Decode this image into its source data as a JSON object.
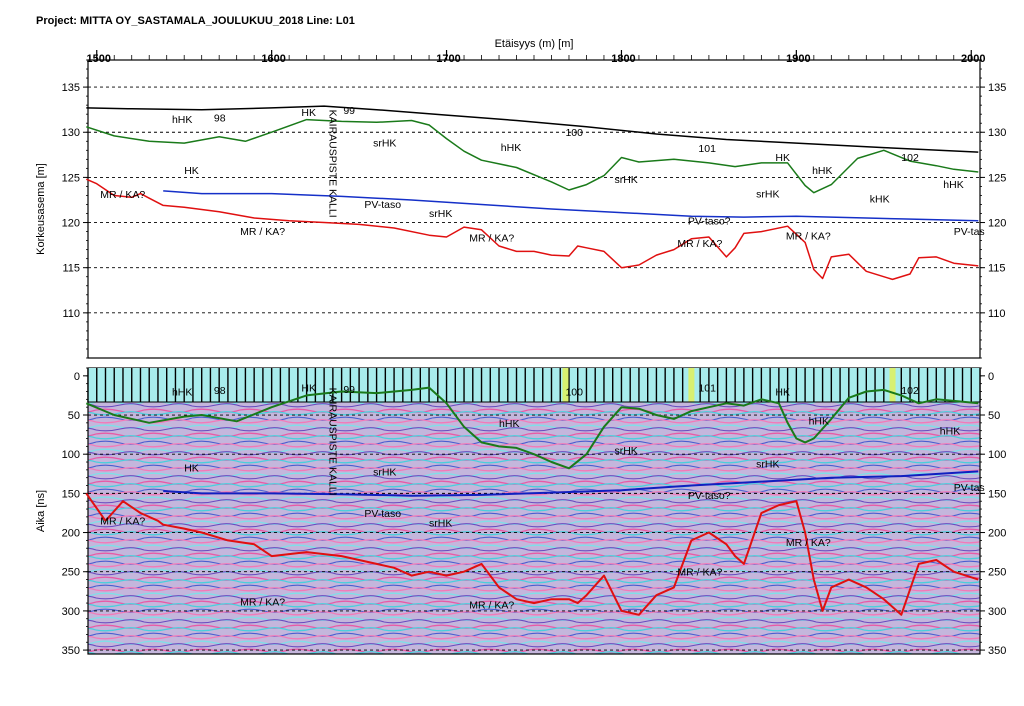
{
  "header": {
    "project": "Project: MITTA OY_SASTAMALA_JOULUKUU_2018  Line: L01"
  },
  "chart_data": [
    {
      "type": "line",
      "xlabel": "Etäisyys (m) [m]",
      "ylabel": "Korkeusasema [m]",
      "xlim": [
        1495,
        2005
      ],
      "ylim": [
        105,
        138
      ],
      "x_ticks": [
        1500,
        1600,
        1700,
        1800,
        1900,
        2000
      ],
      "y_ticks": [
        110,
        115,
        120,
        125,
        130,
        135
      ],
      "grid": true,
      "series": [
        {
          "color": "#000000",
          "x": [
            1494,
            1520,
            1560,
            1600,
            1630,
            1660,
            1700,
            1740,
            1780,
            1820,
            1860,
            1900,
            1950,
            2004
          ],
          "y": [
            132.7,
            132.6,
            132.5,
            132.7,
            132.9,
            132.5,
            131.9,
            131.3,
            130.6,
            129.8,
            129.2,
            128.8,
            128.3,
            127.8
          ]
        },
        {
          "color": "#1a7a1a",
          "x": [
            1494,
            1510,
            1530,
            1550,
            1570,
            1585,
            1600,
            1620,
            1640,
            1660,
            1680,
            1690,
            1700,
            1710,
            1720,
            1740,
            1760,
            1770,
            1780,
            1790,
            1800,
            1810,
            1830,
            1850,
            1865,
            1880,
            1895,
            1905,
            1910,
            1920,
            1935,
            1950,
            1965,
            1980,
            1990,
            2004
          ],
          "y": [
            130.6,
            129.6,
            129.0,
            128.8,
            129.5,
            129.0,
            130.0,
            131.4,
            131.2,
            131.1,
            131.3,
            130.8,
            129.3,
            127.9,
            126.9,
            126.1,
            124.5,
            123.6,
            124.2,
            125.2,
            127.2,
            126.7,
            127.0,
            126.6,
            126.2,
            126.6,
            126.6,
            124.1,
            123.3,
            124.2,
            127.1,
            128.0,
            126.8,
            126.3,
            125.9,
            125.6
          ]
        },
        {
          "color": "#1530c8",
          "x": [
            1538,
            1560,
            1600,
            1640,
            1680,
            1720,
            1760,
            1800,
            1840,
            1870,
            1900,
            1940,
            1960,
            2004
          ],
          "y": [
            123.5,
            123.2,
            123.2,
            122.9,
            122.5,
            122.0,
            121.5,
            121.1,
            120.7,
            120.6,
            120.7,
            120.5,
            120.4,
            120.2
          ]
        },
        {
          "color": "#e01010",
          "x": [
            1494,
            1500,
            1510,
            1520,
            1525,
            1530,
            1538,
            1550,
            1570,
            1590,
            1610,
            1630,
            1650,
            1670,
            1690,
            1700,
            1710,
            1720,
            1730,
            1740,
            1750,
            1760,
            1770,
            1775,
            1780,
            1790,
            1800,
            1810,
            1820,
            1830,
            1840,
            1850,
            1860,
            1865,
            1870,
            1880,
            1895,
            1905,
            1910,
            1915,
            1920,
            1930,
            1940,
            1955,
            1965,
            1970,
            1980,
            1990,
            2004
          ],
          "y": [
            124.8,
            124.3,
            123.0,
            122.8,
            123.2,
            122.7,
            121.9,
            121.7,
            121.2,
            120.5,
            120.2,
            120.0,
            119.8,
            119.4,
            118.6,
            118.4,
            119.5,
            119.2,
            117.4,
            116.8,
            116.8,
            116.4,
            116.3,
            117.4,
            117.2,
            116.8,
            115.0,
            115.3,
            116.4,
            117.0,
            118.2,
            118.4,
            116.2,
            117.2,
            118.8,
            119.0,
            119.6,
            117.8,
            114.8,
            113.8,
            116.2,
            116.5,
            114.6,
            113.7,
            114.3,
            116.1,
            116.2,
            115.5,
            115.2
          ]
        }
      ],
      "annotations": [
        {
          "text": "hHK",
          "x": 1543,
          "y": 131.0
        },
        {
          "text": "98",
          "x": 1567,
          "y": 131.2
        },
        {
          "text": "HK",
          "x": 1617,
          "y": 131.8
        },
        {
          "text": "99",
          "x": 1641,
          "y": 132.0
        },
        {
          "text": "srHK",
          "x": 1658,
          "y": 128.4
        },
        {
          "text": "hHK",
          "x": 1731,
          "y": 127.9
        },
        {
          "text": "100",
          "x": 1768,
          "y": 129.6
        },
        {
          "text": "101",
          "x": 1844,
          "y": 127.8
        },
        {
          "text": "HK",
          "x": 1888,
          "y": 126.8
        },
        {
          "text": "hHK",
          "x": 1909,
          "y": 125.4
        },
        {
          "text": "102",
          "x": 1960,
          "y": 126.8
        },
        {
          "text": "hHK",
          "x": 1984,
          "y": 123.8
        },
        {
          "text": "HK",
          "x": 1550,
          "y": 125.4
        },
        {
          "text": "srHK",
          "x": 1796,
          "y": 124.4
        },
        {
          "text": "srHK",
          "x": 1877,
          "y": 122.8
        },
        {
          "text": "kHK",
          "x": 1942,
          "y": 122.2
        },
        {
          "text": "MR / KA?",
          "x": 1502,
          "y": 122.7
        },
        {
          "text": "PV-taso",
          "x": 1653,
          "y": 121.6
        },
        {
          "text": "srHK",
          "x": 1690,
          "y": 120.6
        },
        {
          "text": "PV-taso?",
          "x": 1838,
          "y": 119.8
        },
        {
          "text": "PV-tas",
          "x": 1990,
          "y": 118.6
        },
        {
          "text": "MR / KA?",
          "x": 1582,
          "y": 118.6
        },
        {
          "text": "MR / KA?",
          "x": 1713,
          "y": 117.9
        },
        {
          "text": "MR / KA?",
          "x": 1832,
          "y": 117.3
        },
        {
          "text": "MR / KA?",
          "x": 1894,
          "y": 118.1
        }
      ],
      "vertical_label": {
        "text": "KAIRAUSPISTE KALLI",
        "x": 1633
      }
    },
    {
      "type": "heatmap",
      "ylabel": "Aika [ns]",
      "xlim": [
        1495,
        2005
      ],
      "ylim": [
        355,
        -10
      ],
      "y_ticks": [
        0,
        50,
        100,
        150,
        200,
        250,
        300,
        350
      ],
      "grid": true,
      "series": [
        {
          "color": "#1a7a1a",
          "x": [
            1494,
            1510,
            1530,
            1550,
            1560,
            1580,
            1600,
            1620,
            1640,
            1660,
            1680,
            1690,
            1700,
            1710,
            1720,
            1730,
            1740,
            1750,
            1760,
            1770,
            1780,
            1790,
            1800,
            1810,
            1820,
            1830,
            1840,
            1850,
            1860,
            1870,
            1880,
            1890,
            1895,
            1900,
            1905,
            1910,
            1920,
            1930,
            1940,
            1950,
            1960,
            1970,
            1980,
            1990,
            2004
          ],
          "y": [
            35,
            50,
            60,
            52,
            50,
            58,
            40,
            25,
            20,
            22,
            18,
            15,
            35,
            65,
            85,
            90,
            92,
            100,
            110,
            118,
            100,
            65,
            40,
            42,
            50,
            55,
            45,
            40,
            35,
            38,
            30,
            35,
            60,
            80,
            85,
            80,
            55,
            28,
            20,
            18,
            25,
            35,
            30,
            32,
            35
          ]
        },
        {
          "color": "#1020c0",
          "x": [
            1538,
            1560,
            1600,
            1640,
            1680,
            1720,
            1760,
            1800,
            1840,
            1880,
            1920,
            1960,
            2004
          ],
          "y": [
            147,
            150,
            150,
            151,
            153,
            152,
            149,
            146,
            140,
            135,
            130,
            128,
            122
          ]
        },
        {
          "color": "#e01010",
          "x": [
            1494,
            1505,
            1515,
            1525,
            1535,
            1538,
            1550,
            1560,
            1575,
            1590,
            1600,
            1620,
            1640,
            1660,
            1670,
            1680,
            1690,
            1700,
            1710,
            1720,
            1730,
            1740,
            1750,
            1760,
            1770,
            1775,
            1780,
            1790,
            1800,
            1810,
            1820,
            1830,
            1840,
            1850,
            1860,
            1865,
            1870,
            1880,
            1890,
            1900,
            1905,
            1910,
            1915,
            1920,
            1930,
            1940,
            1950,
            1960,
            1970,
            1980,
            1990,
            2004
          ],
          "y": [
            150,
            185,
            160,
            175,
            185,
            190,
            195,
            200,
            210,
            215,
            230,
            225,
            230,
            240,
            245,
            255,
            250,
            255,
            250,
            240,
            270,
            285,
            290,
            285,
            285,
            290,
            280,
            255,
            300,
            305,
            280,
            270,
            210,
            200,
            215,
            230,
            240,
            175,
            165,
            160,
            200,
            260,
            300,
            270,
            260,
            270,
            285,
            305,
            240,
            235,
            250,
            260
          ]
        }
      ],
      "annotations": [
        {
          "text": "hHK",
          "x": 1543,
          "y": 25
        },
        {
          "text": "98",
          "x": 1567,
          "y": 23
        },
        {
          "text": "HK",
          "x": 1617,
          "y": 20
        },
        {
          "text": "99",
          "x": 1641,
          "y": 22
        },
        {
          "text": "100",
          "x": 1768,
          "y": 25
        },
        {
          "text": "101",
          "x": 1844,
          "y": 20
        },
        {
          "text": "HK",
          "x": 1888,
          "y": 25
        },
        {
          "text": "102",
          "x": 1960,
          "y": 23
        },
        {
          "text": "hHK",
          "x": 1730,
          "y": 65
        },
        {
          "text": "hHK",
          "x": 1907,
          "y": 62
        },
        {
          "text": "hHK",
          "x": 1982,
          "y": 75
        },
        {
          "text": "srHK",
          "x": 1796,
          "y": 100
        },
        {
          "text": "HK",
          "x": 1550,
          "y": 122
        },
        {
          "text": "srHK",
          "x": 1658,
          "y": 127
        },
        {
          "text": "srHK",
          "x": 1877,
          "y": 117
        },
        {
          "text": "PV-taso?",
          "x": 1838,
          "y": 157
        },
        {
          "text": "PV-tas",
          "x": 1990,
          "y": 147
        },
        {
          "text": "MR / KA?",
          "x": 1502,
          "y": 190
        },
        {
          "text": "PV-taso",
          "x": 1653,
          "y": 180
        },
        {
          "text": "srHK",
          "x": 1690,
          "y": 192
        },
        {
          "text": "MR / KA?",
          "x": 1894,
          "y": 217
        },
        {
          "text": "MR / KA?",
          "x": 1832,
          "y": 255
        },
        {
          "text": "MR / KA?",
          "x": 1582,
          "y": 293
        },
        {
          "text": "MR / KA?",
          "x": 1713,
          "y": 297
        }
      ],
      "vertical_label": {
        "text": "KAIRAUSPISTE KALLI",
        "x": 1633
      }
    }
  ]
}
